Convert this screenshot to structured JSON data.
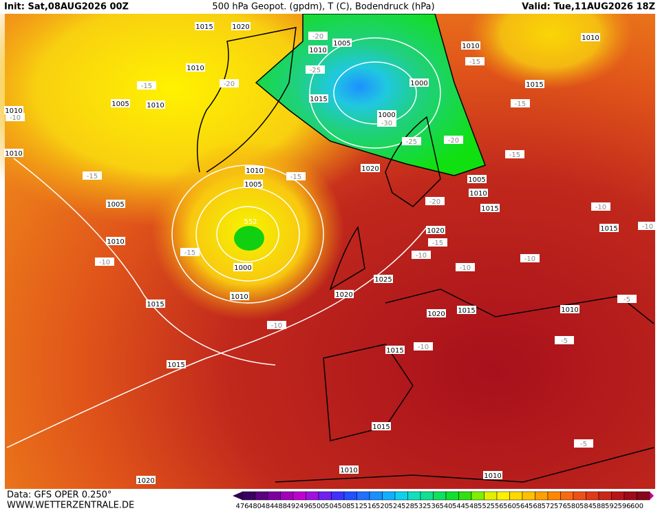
{
  "header": {
    "init": "Init: Sat,08AUG2026 00Z",
    "title": "500 hPa Geopot. (gpdm), T (C), Bodendruck (hPa)",
    "valid": "Valid: Tue,11AUG2026 18Z"
  },
  "footer": {
    "data": "Data: GFS OPER 0.250°",
    "site": "WWW.WETTERZENTRALE.DE"
  },
  "colorbar": {
    "labels": [
      476,
      480,
      484,
      488,
      492,
      496,
      500,
      504,
      508,
      512,
      516,
      520,
      524,
      528,
      532,
      536,
      540,
      544,
      548,
      552,
      556,
      560,
      564,
      568,
      572,
      576,
      580,
      584,
      588,
      592,
      596,
      600
    ]
  },
  "map": {
    "isobar_labels": [
      1015,
      1020,
      1010,
      1005,
      1010,
      1010,
      1010,
      1010,
      1005,
      1010,
      1015,
      1000,
      1000,
      1010,
      1010,
      1005,
      1020,
      1005,
      1010,
      1015,
      1005,
      1010,
      1000,
      1015,
      1010,
      1020,
      1025,
      1020,
      1015,
      1020,
      1010,
      1015,
      1015,
      1015,
      1015,
      1015,
      1010,
      1010,
      1020
    ],
    "temperature_labels": [
      -20,
      -25,
      -15,
      -20,
      -15,
      -15,
      -10,
      -30,
      -25,
      -20,
      -15,
      -15,
      -15,
      -20,
      -10,
      -10,
      -15,
      -10,
      -10,
      -15,
      -10,
      -10,
      -5,
      -10,
      -10,
      -5,
      -5
    ],
    "geopotential_labels": [
      552
    ]
  }
}
